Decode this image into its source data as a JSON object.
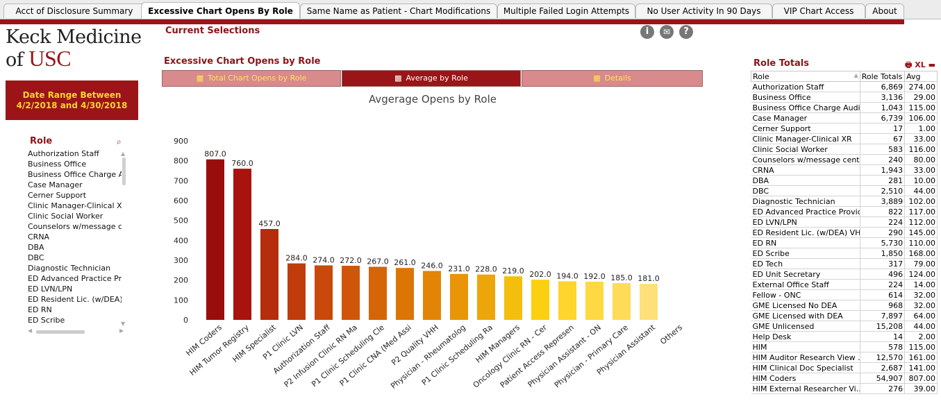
{
  "tabs": [
    {
      "label": "Acct of Disclosure Summary",
      "active": false
    },
    {
      "label": "Excessive Chart Opens By Role",
      "active": true
    },
    {
      "label": "Same Name as Patient - Chart Modifications",
      "active": false
    },
    {
      "label": "Multiple Failed Login Attempts",
      "active": false
    },
    {
      "label": "No User Activity In 90 Days",
      "active": false
    },
    {
      "label": "VIP Chart Access",
      "active": false
    },
    {
      "label": "About",
      "active": false
    }
  ],
  "logo": {
    "line1": "Keck Medicine",
    "line2a": "of ",
    "line2b": "USC"
  },
  "date_range": "Date Range Between 4/2/2018 and 4/30/2018",
  "current_selections": "Current Selections",
  "top_icons": {
    "info": "i",
    "email": "✉",
    "help": "?"
  },
  "role_panel": {
    "title": "Role",
    "items": [
      "Authorization Staff",
      "Business Office",
      "Business Office Charge Auc",
      "Case Manager",
      "Cerner Support",
      "Clinic Manager-Clinical XR",
      "Clinic Social Worker",
      "Counselors w/message cen",
      "CRNA",
      "DBA",
      "DBC",
      "Diagnostic Technician",
      "ED Advanced Practice Prov",
      "ED LVN/LPN",
      "ED Resident Lic. (w/DEA) VI",
      "ED RN",
      "ED Scribe"
    ]
  },
  "chart_section": {
    "title": "Excessive Chart Opens by Role",
    "buttons": [
      "Total Chart Opens by Role",
      "Average by Role",
      "Details"
    ],
    "active_button": 1
  },
  "chart_data": {
    "type": "bar",
    "title": "Avgerage Opens by Role",
    "categories": [
      "HIM Coders",
      "HIM Tumor Registry",
      "HIM Specialist",
      "P1 Clinic LVN",
      "Authorization Staff",
      "P2 Infusion Clinic RN Ma",
      "P1 Clinic Scheduling Cle",
      "P1 Clinic CNA (Med Assi",
      "P2 Quality VHH",
      "Physician - Rheumatolog",
      "P1 Clinic Scheduling Ra",
      "HIM Managers",
      "Oncology Clinic RN - Cer",
      "Patient Access Represen",
      "Physician Assistant - ON",
      "Physician - Primary Care",
      "Physician Assistant",
      "Others"
    ],
    "values": [
      807.0,
      760.0,
      457.0,
      284.0,
      274.0,
      272.0,
      267.0,
      261.0,
      246.0,
      231.0,
      228.0,
      219.0,
      202.0,
      194.0,
      192.0,
      185.0,
      181.0,
      null
    ],
    "data_labels": [
      "807.0",
      "760.0",
      "457.0",
      "284.0",
      "274.0",
      "272.0",
      "267.0",
      "261.0",
      "246.0",
      "231.0",
      "228.0",
      "219.0",
      "202.0",
      "194.0",
      "192.0",
      "185.0",
      "181.0",
      ""
    ],
    "ylim": [
      0,
      900
    ],
    "yticks": [
      0,
      100,
      200,
      300,
      400,
      500,
      600,
      700,
      800,
      900
    ],
    "colors": [
      "#9a0d0d",
      "#a8130e",
      "#b52d0c",
      "#c03c0a",
      "#c8490a",
      "#cf5608",
      "#d66507",
      "#dc7406",
      "#e28506",
      "#e89507",
      "#eda60a",
      "#f4bf0c",
      "#fbd010",
      "#fdd52c",
      "#fed942",
      "#fedb58",
      "#fee07a"
    ],
    "grid": false,
    "legend": "none"
  },
  "role_totals": {
    "title": "Role Totals",
    "icons": {
      "print": "🖶",
      "xl": "XL",
      "min": "▬",
      "max": "▭"
    },
    "columns": [
      "Role",
      "Role Totals",
      "Avg"
    ],
    "rows": [
      [
        "Authorization Staff",
        "6,869",
        "274.00"
      ],
      [
        "Business Office",
        "3,136",
        "29.00"
      ],
      [
        "Business Office Charge Auditor",
        "1,043",
        "115.00"
      ],
      [
        "Case Manager",
        "6,739",
        "106.00"
      ],
      [
        "Cerner Support",
        "17",
        "1.00"
      ],
      [
        "Clinic Manager-Clinical XR",
        "67",
        "33.00"
      ],
      [
        "Clinic Social Worker",
        "583",
        "116.00"
      ],
      [
        "Counselors w/message center",
        "240",
        "80.00"
      ],
      [
        "CRNA",
        "1,943",
        "33.00"
      ],
      [
        "DBA",
        "281",
        "10.00"
      ],
      [
        "DBC",
        "2,510",
        "44.00"
      ],
      [
        "Diagnostic Technician",
        "3,889",
        "102.00"
      ],
      [
        "ED Advanced Practice Provider",
        "822",
        "117.00"
      ],
      [
        "ED LVN/LPN",
        "224",
        "112.00"
      ],
      [
        "ED Resident Lic. (w/DEA) VHH",
        "290",
        "145.00"
      ],
      [
        "ED RN",
        "5,730",
        "110.00"
      ],
      [
        "ED Scribe",
        "1,850",
        "168.00"
      ],
      [
        "ED Tech",
        "317",
        "79.00"
      ],
      [
        "ED Unit Secretary",
        "496",
        "124.00"
      ],
      [
        "External Office Staff",
        "224",
        "14.00"
      ],
      [
        "Fellow - ONC",
        "614",
        "32.00"
      ],
      [
        "GME Licensed No DEA",
        "968",
        "32.00"
      ],
      [
        "GME Licensed with DEA",
        "7,897",
        "64.00"
      ],
      [
        "GME Unlicensed",
        "15,208",
        "44.00"
      ],
      [
        "Help Desk",
        "14",
        "2.00"
      ],
      [
        "HIM",
        "578",
        "115.00"
      ],
      [
        "HIM Auditor Research View ...",
        "12,570",
        "161.00"
      ],
      [
        "HIM Clinical Doc Specialist",
        "2,687",
        "141.00"
      ],
      [
        "HIM Coders",
        "54,907",
        "807.00"
      ],
      [
        "HIM External Researcher Vi...",
        "276",
        "39.00"
      ]
    ]
  }
}
